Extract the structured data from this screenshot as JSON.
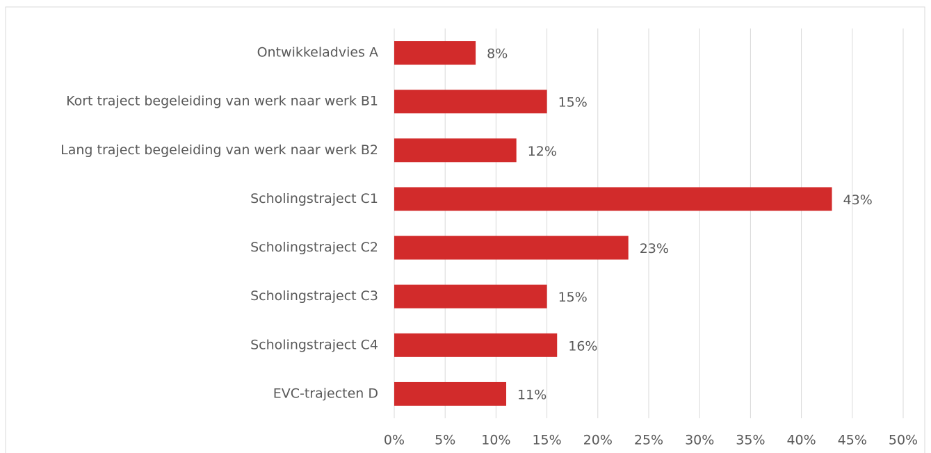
{
  "chart_data": {
    "type": "bar",
    "orientation": "horizontal",
    "categories": [
      "Ontwikkeladvies A",
      "Kort traject begeleiding van werk naar werk B1",
      "Lang traject begeleiding van werk naar werk B2",
      "Scholingstraject C1",
      "Scholingstraject C2",
      "Scholingstraject C3",
      "Scholingstraject C4",
      "EVC-trajecten D"
    ],
    "values": [
      8,
      15,
      12,
      43,
      23,
      15,
      16,
      11
    ],
    "value_labels": [
      "8%",
      "15%",
      "12%",
      "43%",
      "23%",
      "15%",
      "16%",
      "11%"
    ],
    "color": "#d22b2b",
    "xlim": [
      0,
      50
    ],
    "xticks": [
      {
        "value": 0,
        "label": "0%"
      },
      {
        "value": 5,
        "label": "5%"
      },
      {
        "value": 10,
        "label": "10%"
      },
      {
        "value": 15,
        "label": "15%"
      },
      {
        "value": 20,
        "label": "20%"
      },
      {
        "value": 25,
        "label": "25%"
      },
      {
        "value": 30,
        "label": "30%"
      },
      {
        "value": 35,
        "label": "35%"
      },
      {
        "value": 40,
        "label": "40%"
      },
      {
        "value": 45,
        "label": "45%"
      },
      {
        "value": 50,
        "label": "50%"
      }
    ],
    "grid": true
  }
}
